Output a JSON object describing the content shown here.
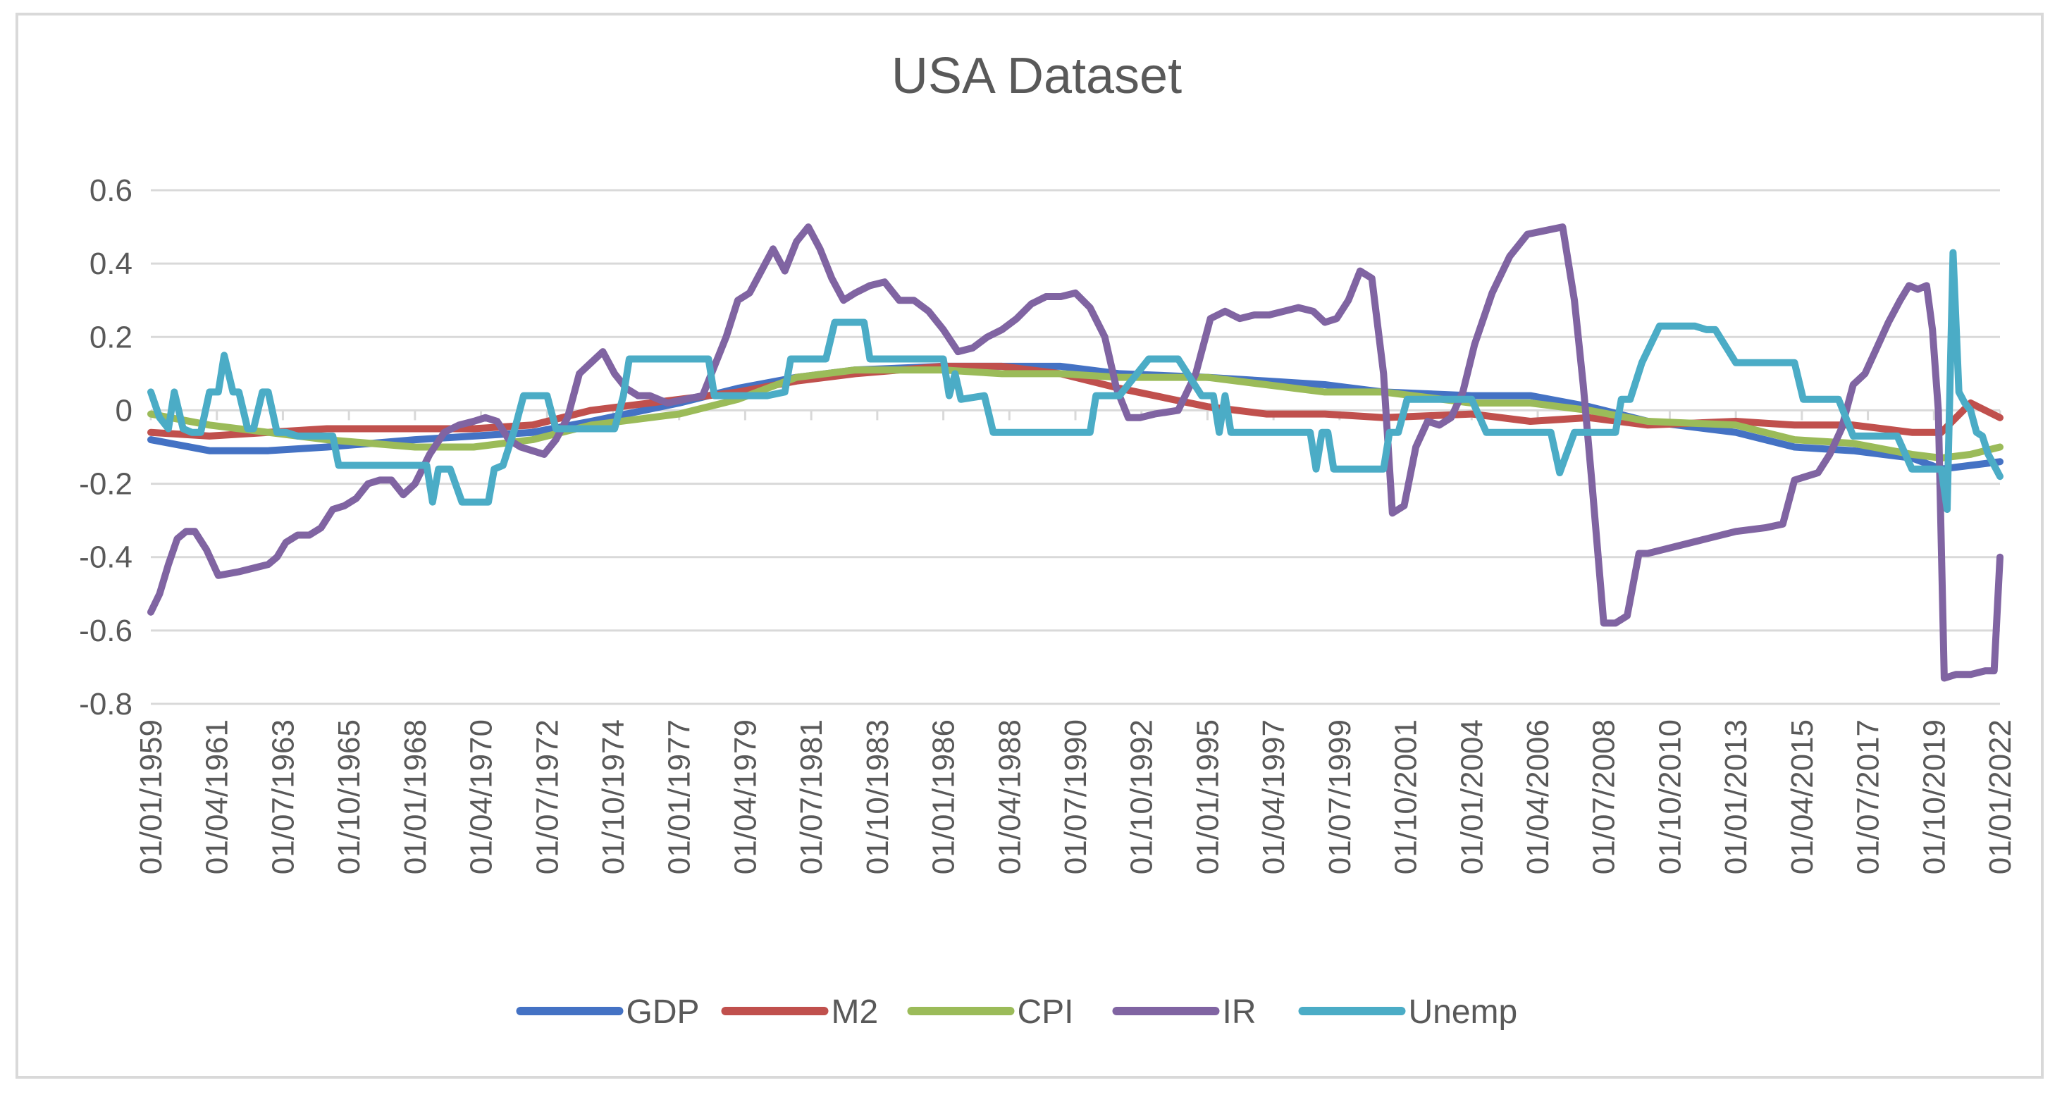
{
  "chart_data": {
    "type": "line",
    "title": "USA Dataset",
    "xlabel": "",
    "ylabel": "",
    "ylim": [
      -0.8,
      0.6
    ],
    "yticks": [
      0.6,
      0.4,
      0.2,
      0,
      -0.2,
      -0.4,
      -0.6,
      -0.8
    ],
    "ytick_labels": [
      "0.6",
      "0.4",
      "0.2",
      "0",
      "-0.2",
      "-0.4",
      "-0.6",
      "-0.8"
    ],
    "xlim": [
      1959.0,
      2022.0
    ],
    "x_tick_labels": [
      "01/01/1959",
      "01/04/1961",
      "01/07/1963",
      "01/10/1965",
      "01/01/1968",
      "01/04/1970",
      "01/07/1972",
      "01/10/1974",
      "01/01/1977",
      "01/04/1979",
      "01/07/1981",
      "01/10/1983",
      "01/01/1986",
      "01/04/1988",
      "01/07/1990",
      "01/10/1992",
      "01/01/1995",
      "01/04/1997",
      "01/07/1999",
      "01/10/2001",
      "01/01/2004",
      "01/04/2006",
      "01/07/2008",
      "01/10/2010",
      "01/01/2013",
      "01/04/2015",
      "01/07/2017",
      "01/10/2019",
      "01/01/2022"
    ],
    "grid": true,
    "legend_position": "bottom",
    "colors": {
      "GDP": "#4472c4",
      "M2": "#c0504d",
      "CPI": "#9bbb59",
      "IR": "#8064a2",
      "Unemp": "#4bacc6",
      "grid": "#d9d9d9",
      "text": "#595959"
    },
    "series": [
      {
        "name": "GDP",
        "x": [
          1959,
          1961,
          1963,
          1965,
          1968,
          1970,
          1972,
          1974,
          1977,
          1979,
          1981,
          1983,
          1986,
          1988,
          1990,
          1992,
          1995,
          1997,
          1999,
          2001,
          2004,
          2006,
          2008,
          2010,
          2013,
          2015,
          2017,
          2019,
          2020,
          2021,
          2022
        ],
        "values": [
          -0.08,
          -0.11,
          -0.11,
          -0.1,
          -0.08,
          -0.07,
          -0.06,
          -0.03,
          0.02,
          0.06,
          0.09,
          0.11,
          0.12,
          0.12,
          0.12,
          0.1,
          0.09,
          0.08,
          0.07,
          0.05,
          0.04,
          0.04,
          0.01,
          -0.03,
          -0.06,
          -0.1,
          -0.11,
          -0.13,
          -0.16,
          -0.15,
          -0.14
        ]
      },
      {
        "name": "M2",
        "x": [
          1959,
          1961,
          1963,
          1965,
          1968,
          1970,
          1972,
          1974,
          1977,
          1979,
          1981,
          1983,
          1986,
          1988,
          1990,
          1992,
          1995,
          1997,
          1999,
          2001,
          2004,
          2006,
          2008,
          2010,
          2013,
          2015,
          2017,
          2019,
          2020,
          2021,
          2022
        ],
        "values": [
          -0.06,
          -0.07,
          -0.06,
          -0.05,
          -0.05,
          -0.05,
          -0.04,
          0.0,
          0.03,
          0.05,
          0.08,
          0.1,
          0.12,
          0.12,
          0.1,
          0.06,
          0.01,
          -0.01,
          -0.01,
          -0.02,
          -0.01,
          -0.03,
          -0.02,
          -0.04,
          -0.03,
          -0.04,
          -0.04,
          -0.06,
          -0.06,
          0.02,
          -0.02
        ]
      },
      {
        "name": "CPI",
        "x": [
          1959,
          1961,
          1963,
          1965,
          1968,
          1970,
          1972,
          1974,
          1977,
          1979,
          1981,
          1983,
          1986,
          1988,
          1990,
          1992,
          1995,
          1997,
          1999,
          2001,
          2004,
          2006,
          2008,
          2010,
          2013,
          2015,
          2017,
          2019,
          2020,
          2021,
          2022
        ],
        "values": [
          -0.01,
          -0.04,
          -0.06,
          -0.08,
          -0.1,
          -0.1,
          -0.08,
          -0.04,
          -0.01,
          0.03,
          0.09,
          0.11,
          0.11,
          0.1,
          0.1,
          0.09,
          0.09,
          0.07,
          0.05,
          0.05,
          0.02,
          0.02,
          0.0,
          -0.03,
          -0.04,
          -0.08,
          -0.09,
          -0.12,
          -0.13,
          -0.12,
          -0.1
        ]
      },
      {
        "name": "IR",
        "x": [
          1959,
          1959.3,
          1959.6,
          1959.9,
          1960.2,
          1960.5,
          1960.9,
          1961.3,
          1962.0,
          1963.0,
          1963.3,
          1963.6,
          1964.0,
          1964.4,
          1964.8,
          1965.2,
          1965.6,
          1966.0,
          1966.4,
          1966.8,
          1967.2,
          1967.6,
          1968.0,
          1968.5,
          1969.0,
          1969.5,
          1970.0,
          1970.4,
          1970.8,
          1971.2,
          1971.6,
          1972.0,
          1972.4,
          1972.8,
          1973.2,
          1973.6,
          1974.0,
          1974.4,
          1974.8,
          1975.2,
          1975.6,
          1976.0,
          1976.6,
          1977.2,
          1977.8,
          1978.2,
          1978.6,
          1979.0,
          1979.4,
          1979.8,
          1980.2,
          1980.6,
          1981.0,
          1981.4,
          1981.8,
          1982.2,
          1982.6,
          1983.0,
          1983.5,
          1984.0,
          1984.5,
          1985.0,
          1985.5,
          1986.0,
          1986.5,
          1987.0,
          1987.5,
          1988.0,
          1988.5,
          1989.0,
          1989.5,
          1990.0,
          1990.5,
          1991.0,
          1991.5,
          1991.9,
          1992.3,
          1992.7,
          1993.2,
          1994.0,
          1994.6,
          1995.1,
          1995.6,
          1996.1,
          1996.6,
          1997.1,
          1997.6,
          1998.1,
          1998.6,
          1999.0,
          1999.4,
          1999.8,
          2000.2,
          2000.6,
          2001.0,
          2001.3,
          2001.7,
          2002.1,
          2002.5,
          2002.9,
          2003.3,
          2003.7,
          2004.1,
          2004.7,
          2005.3,
          2005.9,
          2006.5,
          2007.1,
          2007.5,
          2007.8,
          2008.1,
          2008.5,
          2008.9,
          2009.3,
          2009.7,
          2010.0,
          2010.5,
          2011.0,
          2011.5,
          2012.0,
          2013.0,
          2014.0,
          2014.6,
          2015.0,
          2015.4,
          2015.8,
          2016.2,
          2016.6,
          2017.0,
          2017.4,
          2017.8,
          2018.2,
          2018.6,
          2018.9,
          2019.2,
          2019.5,
          2019.7,
          2019.9,
          2020.1,
          2020.5,
          2021.0,
          2021.5,
          2021.8,
          2022.0
        ],
        "values": [
          -0.55,
          -0.5,
          -0.42,
          -0.35,
          -0.33,
          -0.33,
          -0.38,
          -0.45,
          -0.44,
          -0.42,
          -0.4,
          -0.36,
          -0.34,
          -0.34,
          -0.32,
          -0.27,
          -0.26,
          -0.24,
          -0.2,
          -0.19,
          -0.19,
          -0.23,
          -0.2,
          -0.12,
          -0.06,
          -0.04,
          -0.03,
          -0.02,
          -0.03,
          -0.08,
          -0.1,
          -0.11,
          -0.12,
          -0.08,
          -0.02,
          0.1,
          0.13,
          0.16,
          0.1,
          0.06,
          0.04,
          0.04,
          0.02,
          0.03,
          0.04,
          0.12,
          0.2,
          0.3,
          0.32,
          0.38,
          0.44,
          0.38,
          0.46,
          0.5,
          0.44,
          0.36,
          0.3,
          0.32,
          0.34,
          0.35,
          0.3,
          0.3,
          0.27,
          0.22,
          0.16,
          0.17,
          0.2,
          0.22,
          0.25,
          0.29,
          0.31,
          0.31,
          0.32,
          0.28,
          0.2,
          0.06,
          -0.02,
          -0.02,
          -0.01,
          0.0,
          0.1,
          0.25,
          0.27,
          0.25,
          0.26,
          0.26,
          0.27,
          0.28,
          0.27,
          0.24,
          0.25,
          0.3,
          0.38,
          0.36,
          0.1,
          -0.28,
          -0.26,
          -0.1,
          -0.03,
          -0.04,
          -0.02,
          0.05,
          0.18,
          0.32,
          0.42,
          0.48,
          0.49,
          0.5,
          0.3,
          0.07,
          -0.2,
          -0.58,
          -0.58,
          -0.56,
          -0.39,
          -0.39,
          -0.38,
          -0.37,
          -0.36,
          -0.35,
          -0.33,
          -0.32,
          -0.31,
          -0.19,
          -0.18,
          -0.17,
          -0.12,
          -0.05,
          0.07,
          0.1,
          0.17,
          0.24,
          0.3,
          0.34,
          0.33,
          0.34,
          0.22,
          0.0,
          -0.73,
          -0.72,
          -0.72,
          -0.71,
          -0.71,
          -0.4
        ]
      },
      {
        "name": "Unemp",
        "x": [
          1959,
          1959.3,
          1959.6,
          1959.8,
          1960.1,
          1960.4,
          1960.7,
          1961.0,
          1961.3,
          1961.5,
          1961.8,
          1962.0,
          1962.3,
          1962.5,
          1962.8,
          1963.0,
          1963.3,
          1963.6,
          1964.0,
          1964.7,
          1965.2,
          1965.4,
          1966.0,
          1967.0,
          1967.5,
          1968.0,
          1968.4,
          1968.6,
          1968.8,
          1969.2,
          1969.6,
          1970.0,
          1970.2,
          1970.5,
          1970.7,
          1971.0,
          1971.4,
          1971.7,
          1972.2,
          1972.5,
          1972.8,
          1973.2,
          1973.6,
          1974.0,
          1974.8,
          1975.1,
          1975.3,
          1976.0,
          1977.0,
          1977.8,
          1978.0,
          1978.2,
          1978.6,
          1979.4,
          1980.0,
          1980.6,
          1980.8,
          1981.0,
          1981.6,
          1982.0,
          1982.3,
          1983.3,
          1983.5,
          1984.0,
          1985.0,
          1986.0,
          1986.2,
          1986.4,
          1986.6,
          1987.4,
          1987.7,
          1988.0,
          1989.0,
          1990.0,
          1991.0,
          1991.2,
          1991.4,
          1992.0,
          1993.0,
          1993.2,
          1993.5,
          1994.0,
          1994.8,
          1995.0,
          1995.2,
          1995.4,
          1995.6,
          1995.8,
          1996.2,
          1997.0,
          1998.0,
          1998.5,
          1998.7,
          1998.9,
          1999.1,
          1999.3,
          1999.6,
          2000.0,
          2000.5,
          2001.0,
          2001.2,
          2001.5,
          2001.8,
          2002.0,
          2003.0,
          2004.0,
          2004.5,
          2004.7,
          2005.0,
          2006.0,
          2006.3,
          2006.5,
          2006.7,
          2007.0,
          2007.5,
          2008.0,
          2008.5,
          2008.9,
          2009.1,
          2009.4,
          2009.8,
          2010.4,
          2011.0,
          2011.6,
          2012.0,
          2012.3,
          2013.0,
          2014.0,
          2014.3,
          2014.6,
          2015.0,
          2015.3,
          2015.6,
          2016.0,
          2016.5,
          2017.0,
          2017.5,
          2018.0,
          2018.5,
          2019.0,
          2019.4,
          2019.8,
          2020.0,
          2020.2,
          2020.4,
          2020.6,
          2020.8,
          2021.0,
          2021.2,
          2021.4,
          2021.6,
          2021.8,
          2022.0
        ],
        "values": [
          0.05,
          -0.02,
          -0.05,
          0.05,
          -0.05,
          -0.06,
          -0.06,
          0.05,
          0.05,
          0.15,
          0.05,
          0.05,
          -0.05,
          -0.05,
          0.05,
          0.05,
          -0.06,
          -0.06,
          -0.07,
          -0.07,
          -0.07,
          -0.15,
          -0.15,
          -0.15,
          -0.15,
          -0.15,
          -0.15,
          -0.25,
          -0.16,
          -0.16,
          -0.25,
          -0.25,
          -0.25,
          -0.25,
          -0.16,
          -0.15,
          -0.05,
          0.04,
          0.04,
          0.04,
          -0.05,
          -0.05,
          -0.05,
          -0.05,
          -0.05,
          0.04,
          0.14,
          0.14,
          0.14,
          0.14,
          0.14,
          0.04,
          0.04,
          0.04,
          0.04,
          0.05,
          0.14,
          0.14,
          0.14,
          0.14,
          0.24,
          0.24,
          0.14,
          0.14,
          0.14,
          0.14,
          0.04,
          0.1,
          0.03,
          0.04,
          -0.06,
          -0.06,
          -0.06,
          -0.06,
          -0.06,
          0.04,
          0.04,
          0.04,
          0.14,
          0.14,
          0.14,
          0.14,
          0.04,
          0.04,
          0.04,
          -0.06,
          0.04,
          -0.06,
          -0.06,
          -0.06,
          -0.06,
          -0.06,
          -0.16,
          -0.06,
          -0.06,
          -0.16,
          -0.16,
          -0.16,
          -0.16,
          -0.16,
          -0.06,
          -0.06,
          0.03,
          0.03,
          0.03,
          0.03,
          -0.06,
          -0.06,
          -0.06,
          -0.06,
          -0.06,
          -0.06,
          -0.06,
          -0.17,
          -0.06,
          -0.06,
          -0.06,
          -0.06,
          0.03,
          0.03,
          0.13,
          0.23,
          0.23,
          0.23,
          0.22,
          0.22,
          0.13,
          0.13,
          0.13,
          0.13,
          0.13,
          0.03,
          0.03,
          0.03,
          0.03,
          -0.07,
          -0.07,
          -0.07,
          -0.07,
          -0.16,
          -0.16,
          -0.16,
          -0.16,
          -0.27,
          0.43,
          0.05,
          0.02,
          0.0,
          -0.06,
          -0.07,
          -0.12,
          -0.15,
          -0.18
        ]
      }
    ]
  }
}
